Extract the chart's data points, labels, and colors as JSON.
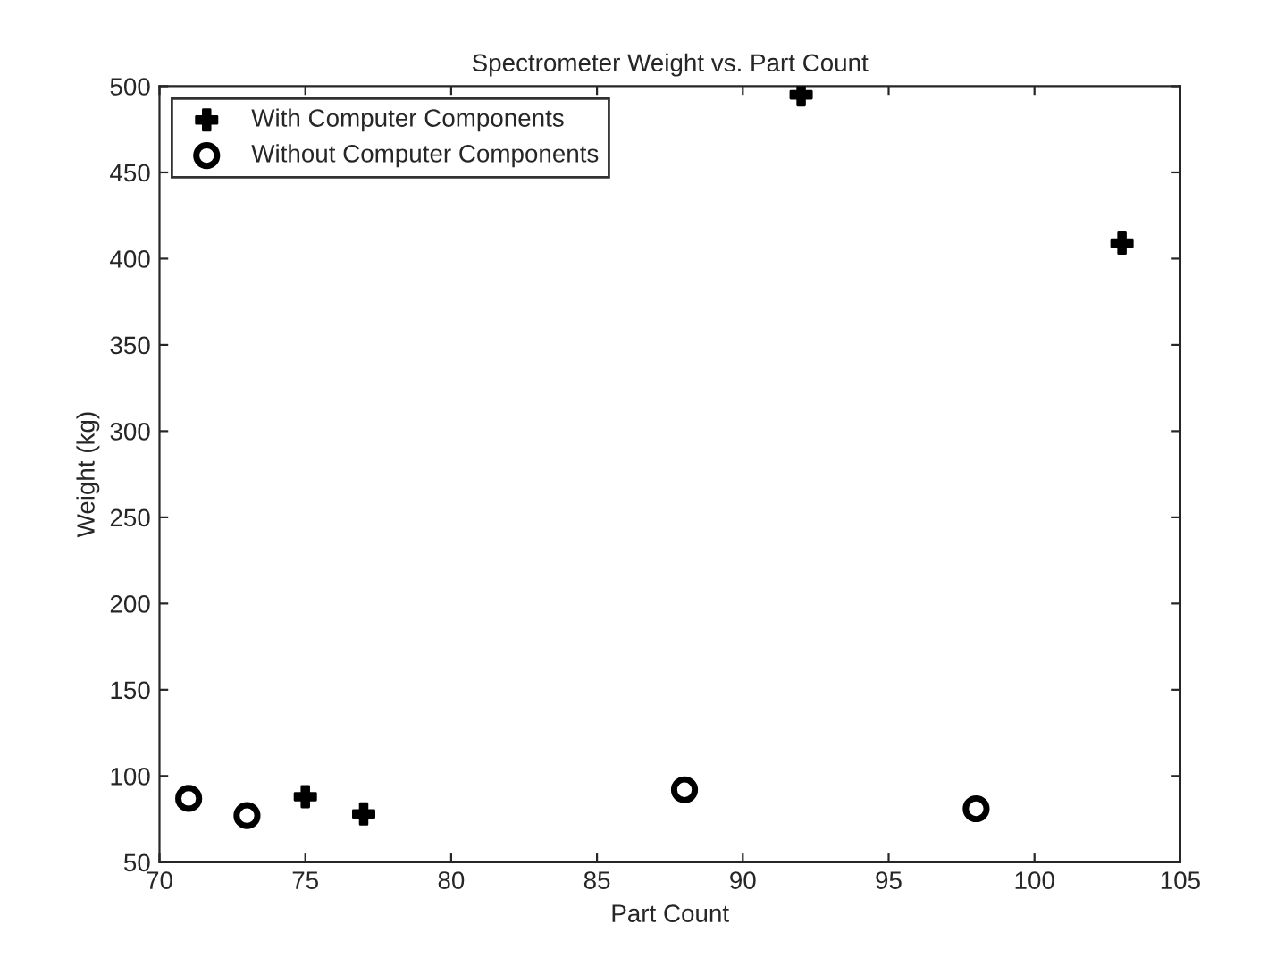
{
  "chart_data": {
    "type": "scatter",
    "title": "Spectrometer Weight vs. Part Count",
    "xlabel": "Part Count",
    "ylabel": "Weight (kg)",
    "series": [
      {
        "name": "With Computer Components",
        "color": "#000000",
        "marker": "cross",
        "x": [
          75,
          77,
          92,
          103
        ],
        "values": [
          88,
          78,
          495,
          409
        ]
      },
      {
        "name": "Without Computer Components",
        "color": "#000000",
        "marker": "circle",
        "x": [
          71,
          73,
          88,
          98
        ],
        "values": [
          87,
          77,
          92,
          81
        ]
      }
    ],
    "xlim": [
      70,
      105
    ],
    "xticks": [
      70,
      75,
      80,
      85,
      90,
      95,
      100,
      105
    ],
    "ylim": [
      50,
      500
    ],
    "yticks": [
      50,
      100,
      150,
      200,
      250,
      300,
      350,
      400,
      450,
      500
    ],
    "grid": false,
    "legend": "top left"
  }
}
